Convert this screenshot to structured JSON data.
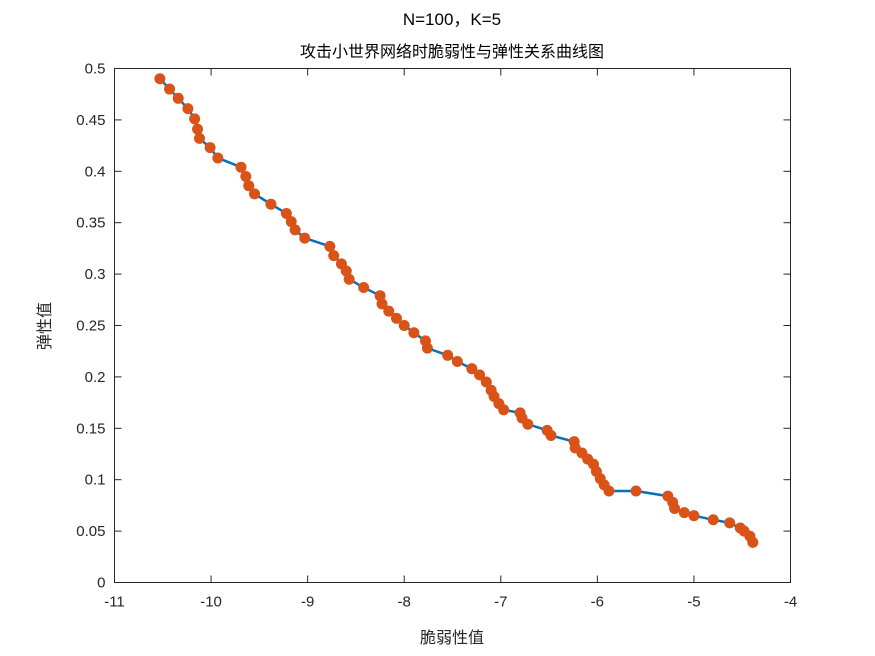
{
  "chart_data": {
    "type": "line",
    "title_line1": "N=100，K=5",
    "title_line2": "攻击小世界网络时脆弱性与弹性关系曲线图",
    "xlabel": "脆弱性值",
    "ylabel": "弹性值",
    "xlim": [
      -11,
      -4
    ],
    "ylim": [
      0,
      0.5
    ],
    "xticks": [
      -11,
      -10,
      -9,
      -8,
      -7,
      -6,
      -5,
      -4
    ],
    "yticks": [
      0,
      0.05,
      0.1,
      0.15,
      0.2,
      0.25,
      0.3,
      0.35,
      0.4,
      0.45,
      0.5
    ],
    "xtick_labels": [
      "-11",
      "-10",
      "-9",
      "-8",
      "-7",
      "-6",
      "-5",
      "-4"
    ],
    "ytick_labels": [
      "0",
      "0.05",
      "0.1",
      "0.15",
      "0.2",
      "0.25",
      "0.3",
      "0.35",
      "0.4",
      "0.45",
      "0.5"
    ],
    "grid": false,
    "line_color": "#0072BD",
    "marker_color": "#D95319",
    "series": [
      {
        "x": [
          -10.53,
          -10.43,
          -10.34,
          -10.24,
          -10.17,
          -10.14,
          -10.12,
          -10.01,
          -9.93,
          -9.69,
          -9.64,
          -9.61,
          -9.55,
          -9.38,
          -9.22,
          -9.17,
          -9.13,
          -9.03,
          -8.77,
          -8.73,
          -8.65,
          -8.6,
          -8.57,
          -8.42,
          -8.25,
          -8.23,
          -8.16,
          -8.08,
          -8.0,
          -7.9,
          -7.78,
          -7.76,
          -7.55,
          -7.45,
          -7.3,
          -7.22,
          -7.15,
          -7.1,
          -7.07,
          -7.02,
          -6.97,
          -6.8,
          -6.78,
          -6.72,
          -6.52,
          -6.48,
          -6.24,
          -6.23,
          -6.16,
          -6.1,
          -6.04,
          -6.01,
          -5.97,
          -5.93,
          -5.88,
          -5.6,
          -5.27,
          -5.22,
          -5.2,
          -5.1,
          -5.0,
          -4.8,
          -4.63,
          -4.52,
          -4.48,
          -4.42,
          -4.39
        ],
        "y": [
          0.49,
          0.48,
          0.471,
          0.461,
          0.451,
          0.441,
          0.432,
          0.423,
          0.413,
          0.404,
          0.395,
          0.386,
          0.378,
          0.368,
          0.359,
          0.351,
          0.343,
          0.335,
          0.327,
          0.318,
          0.31,
          0.303,
          0.295,
          0.287,
          0.279,
          0.271,
          0.264,
          0.257,
          0.25,
          0.243,
          0.235,
          0.228,
          0.221,
          0.215,
          0.208,
          0.202,
          0.195,
          0.187,
          0.181,
          0.174,
          0.168,
          0.165,
          0.16,
          0.154,
          0.148,
          0.143,
          0.137,
          0.131,
          0.126,
          0.12,
          0.115,
          0.108,
          0.101,
          0.095,
          0.089,
          0.089,
          0.084,
          0.078,
          0.072,
          0.068,
          0.065,
          0.061,
          0.058,
          0.053,
          0.05,
          0.045,
          0.039
        ]
      }
    ]
  }
}
